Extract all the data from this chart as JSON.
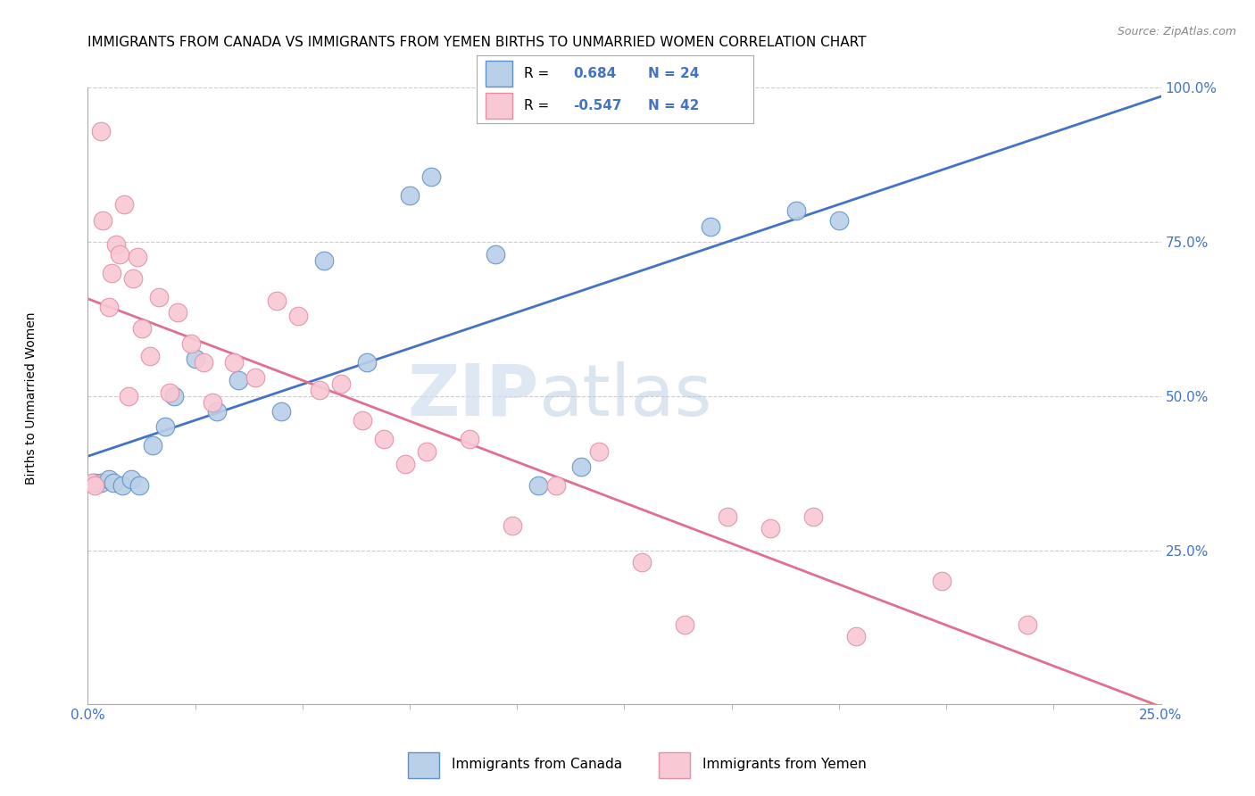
{
  "title": "IMMIGRANTS FROM CANADA VS IMMIGRANTS FROM YEMEN BIRTHS TO UNMARRIED WOMEN CORRELATION CHART",
  "source": "Source: ZipAtlas.com",
  "ylabel_label": "Births to Unmarried Women",
  "canada_R": 0.684,
  "canada_N": 24,
  "yemen_R": -0.547,
  "yemen_N": 42,
  "canada_color": "#b8d0e8",
  "canada_edge_color": "#6090c8",
  "canada_line_color": "#4472c4",
  "yemen_color": "#f8c8d4",
  "yemen_edge_color": "#e090a8",
  "yemen_line_color": "#e07090",
  "watermark_zip": "ZIP",
  "watermark_atlas": "atlas",
  "canada_x": [
    0.15,
    0.3,
    0.5,
    0.6,
    0.8,
    1.0,
    1.2,
    1.5,
    1.8,
    2.0,
    2.5,
    3.0,
    3.5,
    4.5,
    5.5,
    6.5,
    7.5,
    8.0,
    9.5,
    10.5,
    11.5,
    14.5,
    16.5,
    17.5
  ],
  "canada_y": [
    0.36,
    0.36,
    0.365,
    0.36,
    0.355,
    0.365,
    0.355,
    0.42,
    0.45,
    0.5,
    0.56,
    0.475,
    0.525,
    0.475,
    0.72,
    0.555,
    0.825,
    0.855,
    0.73,
    0.355,
    0.385,
    0.775,
    0.8,
    0.785
  ],
  "yemen_x": [
    0.1,
    0.15,
    0.3,
    0.35,
    0.5,
    0.55,
    0.65,
    0.75,
    0.85,
    0.95,
    1.05,
    1.15,
    1.25,
    1.45,
    1.65,
    1.9,
    2.1,
    2.4,
    2.7,
    2.9,
    3.4,
    3.9,
    4.4,
    4.9,
    5.4,
    5.9,
    6.4,
    6.9,
    7.4,
    7.9,
    8.9,
    9.9,
    10.9,
    11.9,
    12.9,
    13.9,
    14.9,
    15.9,
    16.9,
    17.9,
    19.9,
    21.9
  ],
  "yemen_y": [
    0.36,
    0.355,
    0.93,
    0.785,
    0.645,
    0.7,
    0.745,
    0.73,
    0.81,
    0.5,
    0.69,
    0.725,
    0.61,
    0.565,
    0.66,
    0.505,
    0.635,
    0.585,
    0.555,
    0.49,
    0.555,
    0.53,
    0.655,
    0.63,
    0.51,
    0.52,
    0.46,
    0.43,
    0.39,
    0.41,
    0.43,
    0.29,
    0.355,
    0.41,
    0.23,
    0.13,
    0.305,
    0.285,
    0.305,
    0.11,
    0.2,
    0.13
  ],
  "xmin": 0.0,
  "xmax": 0.25,
  "ymin": 0.0,
  "ymax": 1.0,
  "yticks": [
    0.25,
    0.5,
    0.75,
    1.0
  ],
  "xticks_major": [
    0.0,
    0.25
  ],
  "xticks_minor_count": 10,
  "grid_color": "#cccccc",
  "title_fontsize": 11,
  "tick_color": "#4472c4",
  "tick_fontsize": 11
}
